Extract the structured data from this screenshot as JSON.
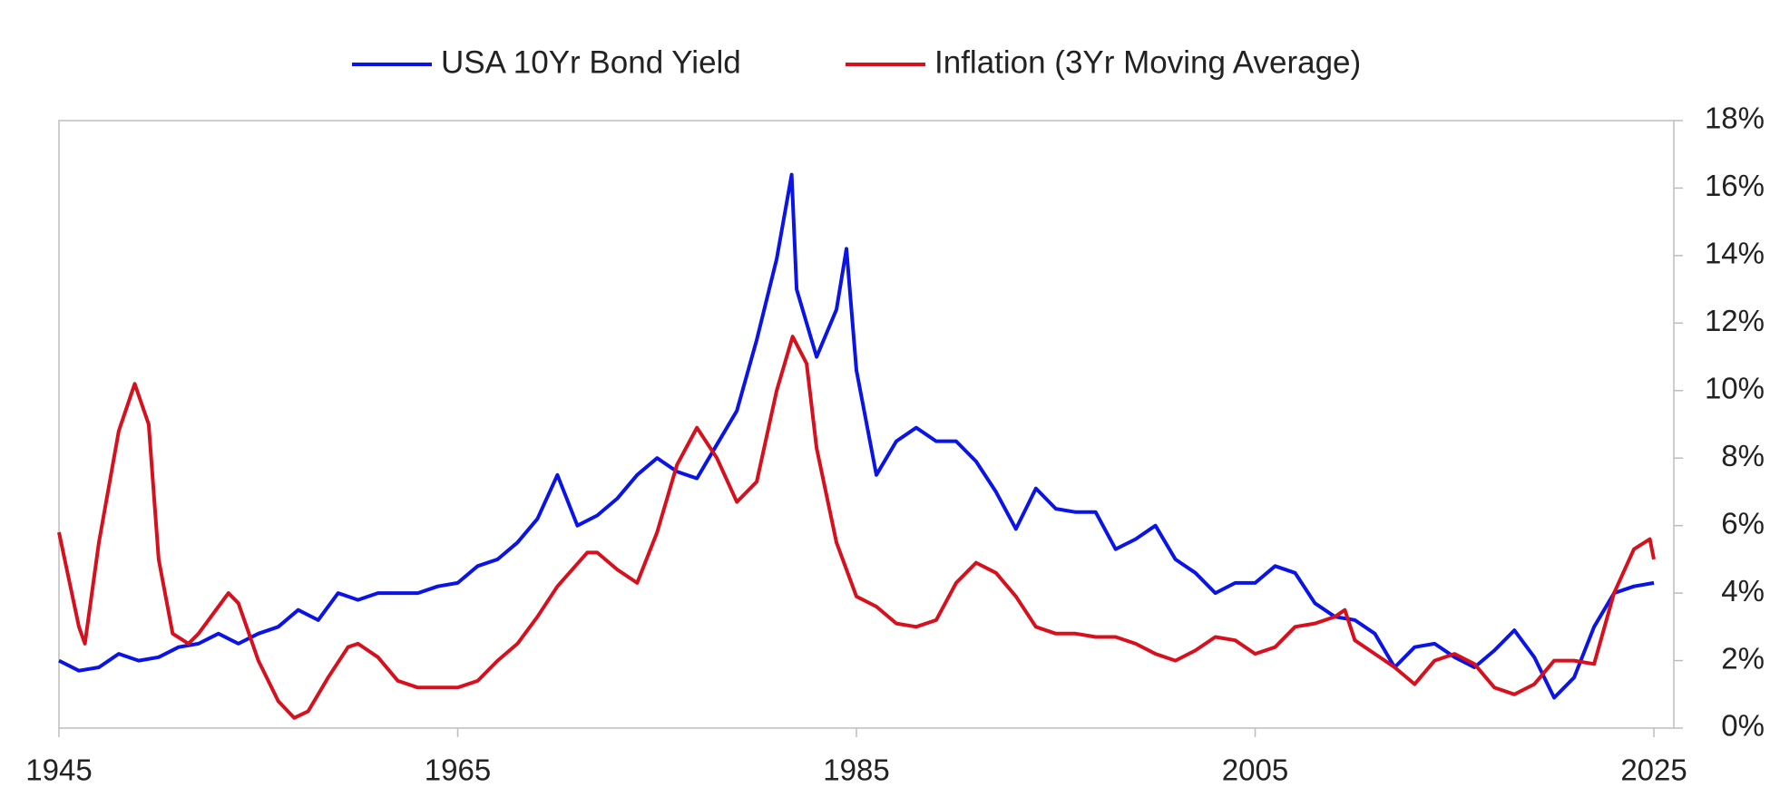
{
  "chart_data": {
    "type": "line",
    "series": [
      {
        "name": "USA 10Yr Bond Yield",
        "color": "#0a14e6",
        "x": [
          1945,
          1946,
          1947,
          1948,
          1949,
          1950,
          1951,
          1952,
          1953,
          1954,
          1955,
          1956,
          1957,
          1958,
          1959,
          1960,
          1961,
          1962,
          1963,
          1964,
          1965,
          1966,
          1967,
          1968,
          1969,
          1970,
          1971,
          1972,
          1973,
          1974,
          1975,
          1976,
          1977,
          1978,
          1979,
          1980,
          1981,
          1981.75,
          1982,
          1983,
          1984,
          1984.5,
          1985,
          1986,
          1987,
          1988,
          1989,
          1990,
          1991,
          1992,
          1993,
          1994,
          1995,
          1996,
          1997,
          1998,
          1999,
          2000,
          2001,
          2002,
          2003,
          2004,
          2005,
          2006,
          2007,
          2008,
          2009,
          2010,
          2011,
          2012,
          2013,
          2014,
          2015,
          2016,
          2017,
          2018,
          2019,
          2020,
          2021,
          2022,
          2023,
          2024,
          2025
        ],
        "values": [
          2.0,
          1.7,
          1.8,
          2.2,
          2.0,
          2.1,
          2.4,
          2.5,
          2.8,
          2.5,
          2.8,
          3.0,
          3.5,
          3.2,
          4.0,
          3.8,
          4.0,
          4.0,
          4.0,
          4.2,
          4.3,
          4.8,
          5.0,
          5.5,
          6.2,
          7.5,
          6.0,
          6.3,
          6.8,
          7.5,
          8.0,
          7.6,
          7.4,
          8.4,
          9.4,
          11.5,
          13.9,
          16.4,
          13.0,
          11.0,
          12.4,
          14.2,
          10.6,
          7.5,
          8.5,
          8.9,
          8.5,
          8.5,
          7.9,
          7.0,
          5.9,
          7.1,
          6.5,
          6.4,
          6.4,
          5.3,
          5.6,
          6.0,
          5.0,
          4.6,
          4.0,
          4.3,
          4.3,
          4.8,
          4.6,
          3.7,
          3.3,
          3.2,
          2.8,
          1.8,
          2.4,
          2.5,
          2.1,
          1.8,
          2.3,
          2.9,
          2.1,
          0.9,
          1.5,
          3.0,
          4.0,
          4.2,
          4.3
        ]
      },
      {
        "name": "Inflation (3Yr Moving Average)",
        "color": "#d7101e",
        "x": [
          1945,
          1946,
          1946.3,
          1947,
          1948,
          1948.8,
          1949.5,
          1950,
          1950.7,
          1951.5,
          1952,
          1953,
          1953.5,
          1954,
          1955,
          1956,
          1956.8,
          1957.5,
          1958.5,
          1959.5,
          1960,
          1961,
          1962,
          1963,
          1964,
          1965,
          1966,
          1967,
          1968,
          1969,
          1970,
          1971.5,
          1972,
          1973,
          1974,
          1975,
          1976,
          1977,
          1978,
          1979,
          1980,
          1981,
          1981.8,
          1982.5,
          1983,
          1984,
          1985,
          1986,
          1987,
          1988,
          1989,
          1990,
          1991,
          1992,
          1993,
          1994,
          1995,
          1996,
          1997,
          1998,
          1999,
          2000,
          2001,
          2002,
          2003,
          2004,
          2005,
          2006,
          2007,
          2008,
          2009,
          2009.5,
          2010,
          2011,
          2012,
          2013,
          2014,
          2015,
          2016,
          2017,
          2018,
          2019,
          2020,
          2021,
          2022,
          2023,
          2024,
          2024.8,
          2025
        ],
        "values": [
          5.8,
          3.0,
          2.5,
          5.5,
          8.8,
          10.2,
          9.0,
          5.0,
          2.8,
          2.5,
          2.8,
          3.6,
          4.0,
          3.7,
          2.0,
          0.8,
          0.3,
          0.5,
          1.5,
          2.4,
          2.5,
          2.1,
          1.4,
          1.2,
          1.2,
          1.2,
          1.4,
          2.0,
          2.5,
          3.3,
          4.2,
          5.2,
          5.2,
          4.7,
          4.3,
          5.8,
          7.8,
          8.9,
          8.0,
          6.7,
          7.3,
          10.0,
          11.6,
          10.8,
          8.3,
          5.5,
          3.9,
          3.6,
          3.1,
          3.0,
          3.2,
          4.3,
          4.9,
          4.6,
          3.9,
          3.0,
          2.8,
          2.8,
          2.7,
          2.7,
          2.5,
          2.2,
          2.0,
          2.3,
          2.7,
          2.6,
          2.2,
          2.4,
          3.0,
          3.1,
          3.3,
          3.5,
          2.6,
          2.2,
          1.8,
          1.3,
          2.0,
          2.2,
          1.9,
          1.2,
          1.0,
          1.3,
          2.0,
          2.0,
          1.9,
          4.0,
          5.3,
          5.6,
          5.0
        ]
      }
    ],
    "xlim": [
      1945,
      2026
    ],
    "xticks": [
      1945,
      1965,
      1985,
      2005,
      2025
    ],
    "ylim": [
      0,
      18
    ],
    "yticks": [
      {
        "value": 0,
        "label": "0%"
      },
      {
        "value": 2,
        "label": "2%"
      },
      {
        "value": 4,
        "label": "4%"
      },
      {
        "value": 6,
        "label": "6%"
      },
      {
        "value": 8,
        "label": "8%"
      },
      {
        "value": 10,
        "label": "10%"
      },
      {
        "value": 12,
        "label": "12%"
      },
      {
        "value": 14,
        "label": "14%"
      },
      {
        "value": 16,
        "label": "16%"
      },
      {
        "value": 18,
        "label": "18%"
      }
    ],
    "y_axis_side": "right",
    "legend": "top",
    "grid": false
  }
}
